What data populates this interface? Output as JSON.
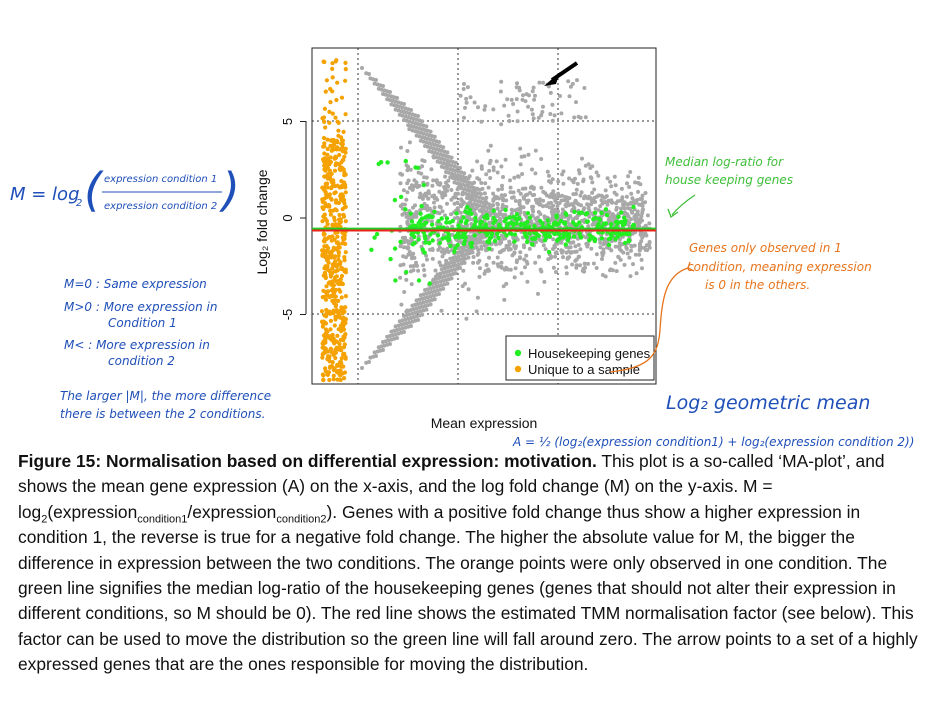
{
  "chart_data": {
    "type": "scatter",
    "title": "",
    "xlabel": "Mean expression",
    "ylabel": "Log₂ fold change",
    "y_ticks": [
      "5",
      "0",
      "-5"
    ],
    "y_tick_values": [
      5,
      0,
      -5
    ],
    "ylim": [
      -8.7,
      9
    ],
    "x_axis_ticks_printed": false,
    "grid": "dotted vertical and horizontal reference lines",
    "legend_position": "bottom-right",
    "legend": [
      {
        "name": "Housekeeping genes",
        "color": "#22ee22"
      },
      {
        "name": "Unique to a sample",
        "color": "#f5a200"
      }
    ],
    "series_colors": {
      "all_genes": "#a8a8a8",
      "housekeeping": "#22ee22",
      "unique": "#f5a200"
    },
    "lines": [
      {
        "name": "Median log-ratio for housekeeping genes",
        "color": "#22cc22",
        "y": -0.55
      },
      {
        "name": "Estimated TMM normalisation factor",
        "color": "#e8241c",
        "y": -0.65
      }
    ]
  },
  "annotations": {
    "m_formula": {
      "lhs": "M = log",
      "sub": "2",
      "numerator": "expression condition 1",
      "denominator": "expression condition 2"
    },
    "m_cases": [
      "M=0 : Same expression",
      "M>0 : More expression in",
      "Condition 1",
      "M< : More expression in",
      "condition 2"
    ],
    "m_note": [
      "The larger |M|, the more difference",
      "there is between the 2 conditions."
    ],
    "median_note": [
      "Median log-ratio for",
      "house keeping genes"
    ],
    "orange_note": [
      "Genes only observed in 1",
      "condition, meaning expression",
      "is 0 in the others."
    ],
    "a_title": "Log₂ geometric mean",
    "a_formula": "A = ½ (log₂(expression condition1) + log₂(expression condition 2))"
  },
  "caption": {
    "label": "Figure 15: Normalisation based on differential expression: motivation.",
    "part1": " This plot is a so-called ‘MA-plot’, and shows the mean gene expression (A) on the x-axis, and the log fold change (M) on the y-axis. M = log",
    "sub_2": "2",
    "part2": "(expression",
    "sub_c1": "condition1",
    "part3": "/expression",
    "sub_c2": "condition2",
    "part4": "). Genes with a positive fold change thus show a higher expression in condition 1, the reverse is true for a negative fold change. The higher the absolute value for M, the bigger the difference in expression between the two conditions. The orange points were only observed in one condition. The green line signifies the median log-ratio of the housekeeping genes (genes that should not alter their expression in different conditions, so M should be 0). The red line shows the estimated TMM normalisation factor (see below). This factor can be used to move the distribution so the green line will fall around zero. The arrow points to a set of a highly expressed genes that are the ones responsible for moving the distribution."
  }
}
